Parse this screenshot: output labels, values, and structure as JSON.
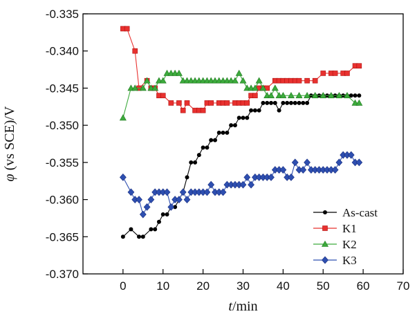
{
  "chart_data": {
    "type": "line",
    "title": "",
    "xlabel": {
      "italic": "t",
      "rest": "/min"
    },
    "ylabel": {
      "italic": "φ",
      "rest": " (vs SCE)/V"
    },
    "xlim": [
      -10,
      70
    ],
    "ylim": [
      -0.37,
      -0.335
    ],
    "x_ticks": [
      0,
      10,
      20,
      30,
      40,
      50,
      60,
      70
    ],
    "y_ticks": [
      -0.335,
      -0.34,
      -0.345,
      -0.35,
      -0.355,
      -0.36,
      -0.365,
      -0.37
    ],
    "y_tick_labels": [
      "-0.335",
      "-0.340",
      "-0.345",
      "-0.350",
      "-0.355",
      "-0.360",
      "-0.365",
      "-0.370"
    ],
    "grid": false,
    "legend_position": "bottom-right",
    "series": [
      {
        "name": "As-cast",
        "color": "#000000",
        "marker": "circle",
        "x": [
          0,
          2,
          4,
          5,
          7,
          8,
          9,
          10,
          11,
          12,
          13,
          14,
          15,
          16,
          17,
          18,
          19,
          20,
          21,
          22,
          23,
          24,
          25,
          26,
          27,
          28,
          29,
          30,
          31,
          32,
          33,
          34,
          35,
          36,
          37,
          38,
          39,
          40,
          41,
          42,
          43,
          44,
          45,
          46,
          47,
          48,
          49,
          50,
          51,
          52,
          53,
          54,
          55,
          56,
          57,
          58,
          59
        ],
        "values": [
          -0.365,
          -0.364,
          -0.365,
          -0.365,
          -0.364,
          -0.364,
          -0.363,
          -0.362,
          -0.362,
          -0.361,
          -0.361,
          -0.36,
          -0.359,
          -0.357,
          -0.355,
          -0.355,
          -0.354,
          -0.353,
          -0.353,
          -0.352,
          -0.352,
          -0.351,
          -0.351,
          -0.351,
          -0.35,
          -0.35,
          -0.349,
          -0.349,
          -0.349,
          -0.348,
          -0.348,
          -0.348,
          -0.347,
          -0.347,
          -0.347,
          -0.347,
          -0.348,
          -0.347,
          -0.347,
          -0.347,
          -0.347,
          -0.347,
          -0.347,
          -0.347,
          -0.346,
          -0.346,
          -0.346,
          -0.346,
          -0.346,
          -0.346,
          -0.346,
          -0.346,
          -0.346,
          -0.346,
          -0.346,
          -0.346,
          -0.346
        ]
      },
      {
        "name": "K1",
        "color": "#e8312f",
        "marker": "square",
        "x": [
          0,
          1,
          3,
          4,
          6,
          7,
          8,
          9,
          10,
          12,
          14,
          15,
          16,
          18,
          19,
          20,
          21,
          22,
          24,
          25,
          26,
          28,
          29,
          30,
          31,
          32,
          33,
          34,
          35,
          36,
          38,
          39,
          40,
          41,
          42,
          43,
          44,
          46,
          48,
          50,
          52,
          53,
          55,
          56,
          58,
          59
        ],
        "values": [
          -0.337,
          -0.337,
          -0.34,
          -0.345,
          -0.344,
          -0.345,
          -0.345,
          -0.346,
          -0.346,
          -0.347,
          -0.347,
          -0.348,
          -0.347,
          -0.348,
          -0.348,
          -0.348,
          -0.347,
          -0.347,
          -0.347,
          -0.347,
          -0.347,
          -0.347,
          -0.347,
          -0.347,
          -0.347,
          -0.346,
          -0.346,
          -0.345,
          -0.345,
          -0.345,
          -0.344,
          -0.344,
          -0.344,
          -0.344,
          -0.344,
          -0.344,
          -0.344,
          -0.344,
          -0.344,
          -0.343,
          -0.343,
          -0.343,
          -0.343,
          -0.343,
          -0.342,
          -0.342
        ]
      },
      {
        "name": "K2",
        "color": "#3caa3c",
        "marker": "triangle",
        "x": [
          0,
          2,
          3,
          5,
          6,
          7,
          8,
          9,
          10,
          11,
          12,
          13,
          14,
          15,
          16,
          17,
          18,
          19,
          20,
          21,
          22,
          23,
          24,
          25,
          26,
          27,
          28,
          29,
          30,
          31,
          32,
          33,
          34,
          35,
          36,
          37,
          38,
          39,
          40,
          42,
          44,
          46,
          48,
          50,
          52,
          54,
          56,
          58,
          59
        ],
        "values": [
          -0.349,
          -0.345,
          -0.345,
          -0.345,
          -0.344,
          -0.345,
          -0.345,
          -0.344,
          -0.344,
          -0.343,
          -0.343,
          -0.343,
          -0.343,
          -0.344,
          -0.344,
          -0.344,
          -0.344,
          -0.344,
          -0.344,
          -0.344,
          -0.344,
          -0.344,
          -0.344,
          -0.344,
          -0.344,
          -0.344,
          -0.344,
          -0.343,
          -0.344,
          -0.345,
          -0.345,
          -0.345,
          -0.344,
          -0.345,
          -0.346,
          -0.346,
          -0.345,
          -0.346,
          -0.346,
          -0.346,
          -0.346,
          -0.346,
          -0.346,
          -0.346,
          -0.346,
          -0.346,
          -0.346,
          -0.347,
          -0.347
        ]
      },
      {
        "name": "K3",
        "color": "#2e4fb0",
        "marker": "diamond",
        "x": [
          0,
          2,
          3,
          4,
          5,
          6,
          7,
          8,
          9,
          10,
          11,
          12,
          13,
          14,
          15,
          16,
          17,
          18,
          19,
          20,
          21,
          22,
          23,
          24,
          25,
          26,
          27,
          28,
          29,
          30,
          31,
          32,
          33,
          34,
          35,
          36,
          37,
          38,
          39,
          40,
          41,
          42,
          43,
          44,
          45,
          46,
          47,
          48,
          49,
          50,
          51,
          52,
          53,
          54,
          55,
          56,
          57,
          58,
          59
        ],
        "values": [
          -0.357,
          -0.359,
          -0.36,
          -0.36,
          -0.362,
          -0.361,
          -0.36,
          -0.359,
          -0.359,
          -0.359,
          -0.359,
          -0.361,
          -0.36,
          -0.36,
          -0.359,
          -0.36,
          -0.359,
          -0.359,
          -0.359,
          -0.359,
          -0.359,
          -0.358,
          -0.359,
          -0.359,
          -0.359,
          -0.358,
          -0.358,
          -0.358,
          -0.358,
          -0.358,
          -0.357,
          -0.358,
          -0.357,
          -0.357,
          -0.357,
          -0.357,
          -0.357,
          -0.356,
          -0.356,
          -0.356,
          -0.357,
          -0.357,
          -0.355,
          -0.356,
          -0.356,
          -0.355,
          -0.356,
          -0.356,
          -0.356,
          -0.356,
          -0.356,
          -0.356,
          -0.356,
          -0.355,
          -0.354,
          -0.354,
          -0.354,
          -0.355,
          -0.355
        ]
      }
    ]
  }
}
